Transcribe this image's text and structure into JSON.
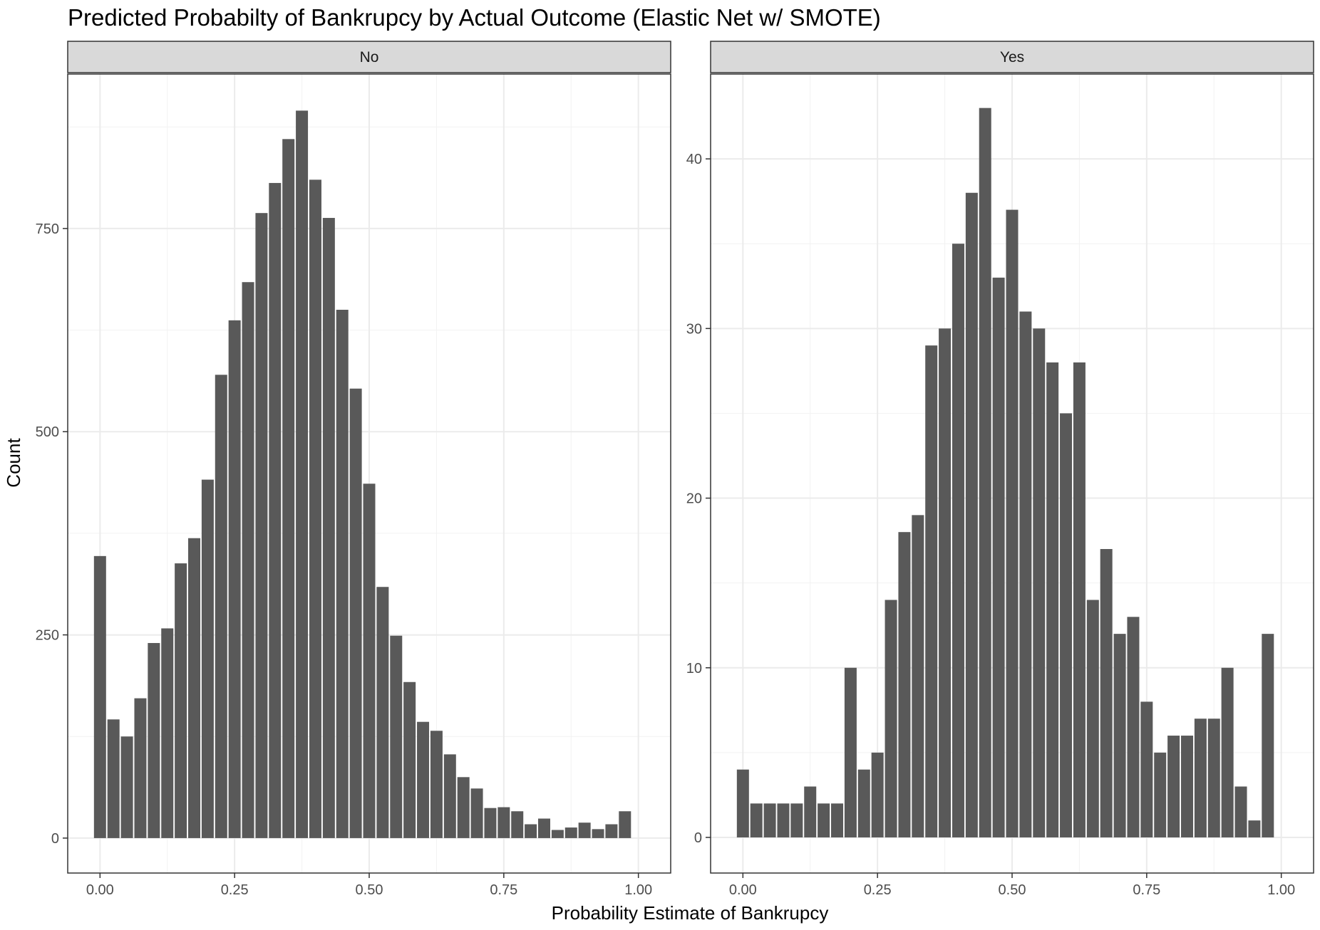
{
  "chart_data": {
    "type": "bar",
    "title": "Predicted Probabilty of Bankrupcy by Actual Outcome (Elastic Net w/ SMOTE)",
    "xlabel": "Probability Estimate of Bankrupcy",
    "ylabel": "Count",
    "bin_width": 0.025,
    "x_ticks": [
      "0.00",
      "0.25",
      "0.50",
      "0.75",
      "1.00"
    ],
    "x_tick_values": [
      0,
      0.25,
      0.5,
      0.75,
      1.0
    ],
    "xlim": [
      -0.06,
      1.06
    ],
    "grid": true,
    "bar_color": "#595959",
    "strip_color": "#d9d9d9",
    "panels": [
      {
        "label": "No",
        "ylim": [
          -43,
          940
        ],
        "y_ticks": [
          "0",
          "250",
          "500",
          "750"
        ],
        "y_tick_values": [
          0,
          250,
          500,
          750
        ],
        "y_minor_values": [
          125,
          375,
          625,
          875
        ],
        "x": [
          0.0,
          0.025,
          0.05,
          0.075,
          0.1,
          0.125,
          0.15,
          0.175,
          0.2,
          0.225,
          0.25,
          0.275,
          0.3,
          0.325,
          0.35,
          0.375,
          0.4,
          0.425,
          0.45,
          0.475,
          0.5,
          0.525,
          0.55,
          0.575,
          0.6,
          0.625,
          0.65,
          0.675,
          0.7,
          0.725,
          0.75,
          0.775,
          0.8,
          0.825,
          0.85,
          0.875,
          0.9,
          0.925,
          0.95,
          0.975,
          1.0
        ],
        "values": [
          347,
          146,
          125,
          172,
          240,
          258,
          338,
          369,
          441,
          570,
          637,
          684,
          769,
          806,
          860,
          895,
          810,
          763,
          650,
          553,
          436,
          309,
          249,
          192,
          143,
          132,
          103,
          75,
          61,
          37,
          38,
          33,
          17,
          24,
          10,
          13,
          19,
          11,
          17,
          33,
          0
        ]
      },
      {
        "label": "Yes",
        "ylim": [
          -2.1,
          45
        ],
        "y_ticks": [
          "0",
          "10",
          "20",
          "30",
          "40"
        ],
        "y_tick_values": [
          0,
          10,
          20,
          30,
          40
        ],
        "y_minor_values": [
          5,
          15,
          25,
          35
        ],
        "x": [
          0.0,
          0.025,
          0.05,
          0.075,
          0.1,
          0.125,
          0.15,
          0.175,
          0.2,
          0.225,
          0.25,
          0.275,
          0.3,
          0.325,
          0.35,
          0.375,
          0.4,
          0.425,
          0.45,
          0.475,
          0.5,
          0.525,
          0.55,
          0.575,
          0.6,
          0.625,
          0.65,
          0.675,
          0.7,
          0.725,
          0.75,
          0.775,
          0.8,
          0.825,
          0.85,
          0.875,
          0.9,
          0.925,
          0.95,
          0.975,
          1.0
        ],
        "values": [
          4,
          2,
          2,
          2,
          2,
          3,
          2,
          2,
          10,
          4,
          5,
          14,
          18,
          19,
          29,
          30,
          35,
          38,
          43,
          33,
          37,
          31,
          30,
          28,
          25,
          28,
          14,
          17,
          12,
          13,
          8,
          5,
          6,
          6,
          7,
          7,
          10,
          3,
          1,
          12,
          0
        ]
      }
    ]
  }
}
